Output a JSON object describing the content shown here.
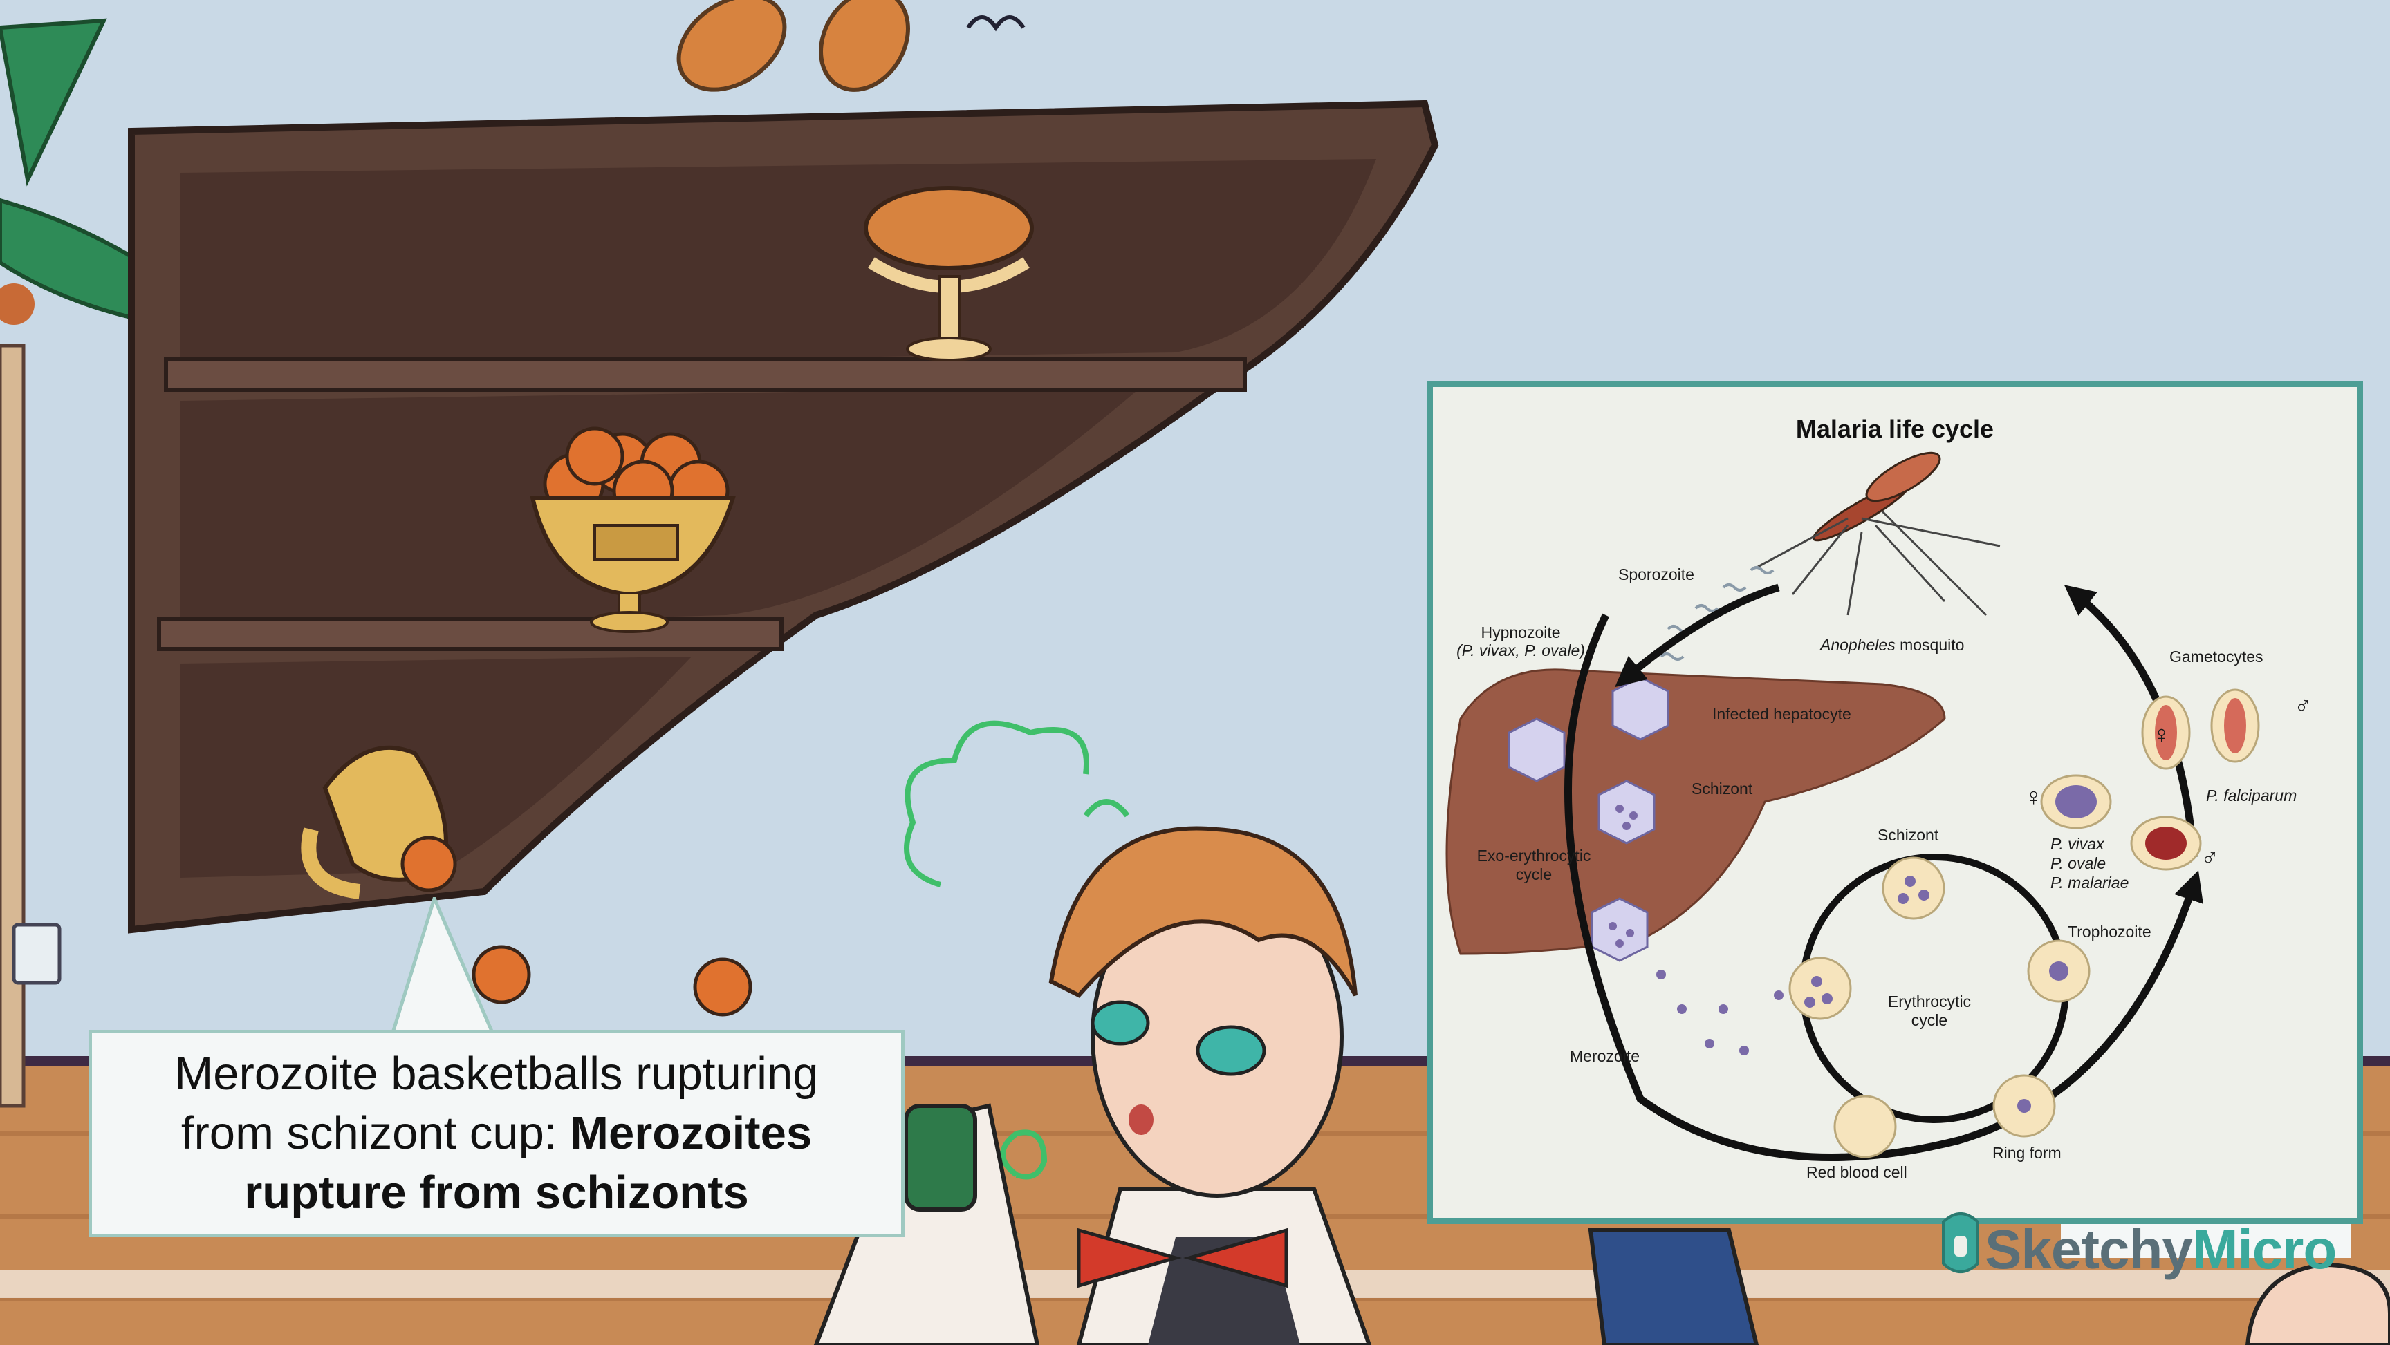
{
  "caption": {
    "line1": "Merozoite basketballs rupturing",
    "line2_plain": "from schizont cup: ",
    "line2_bold": "Merozoites",
    "line3_bold": "rupture from schizonts"
  },
  "diagram": {
    "title": "Malaria life cycle",
    "labels": {
      "sporozoite": "Sporozoite",
      "mosquito": "Anopheles",
      "mosquito_suffix": " mosquito",
      "gametocytes": "Gametocytes",
      "hypnozoite": "Hypnozoite",
      "hypnozoite_species": "(P. vivax, P. ovale)",
      "infected_hepatocyte": "Infected hepatocyte",
      "schizont_liver": "Schizont",
      "exo_cycle_1": "Exo-erythrocytic",
      "exo_cycle_2": "cycle",
      "p_falciparum": "P. falciparum",
      "female_symbol": "♀",
      "male_symbol": "♂",
      "p_vivax": "P. vivax",
      "p_ovale": "P. ovale",
      "p_malariae": "P. malariae",
      "schizont_rbc": "Schizont",
      "trophozoite": "Trophozoite",
      "erythrocytic_1": "Erythrocytic",
      "erythrocytic_2": "cycle",
      "merozoite": "Merozoite",
      "ring_form": "Ring form",
      "red_blood_cell": "Red blood cell"
    }
  },
  "brand": {
    "part1": "Sketchy",
    "part2": "Micro"
  },
  "colors": {
    "wall": "#c9d9e6",
    "shelf": "#5a4036",
    "floor": "#c88a55",
    "panel_border": "#4d9e95",
    "liver": "#9a5a46",
    "parasite": "#7a6aa8",
    "brand_teal": "#3aa99c"
  }
}
